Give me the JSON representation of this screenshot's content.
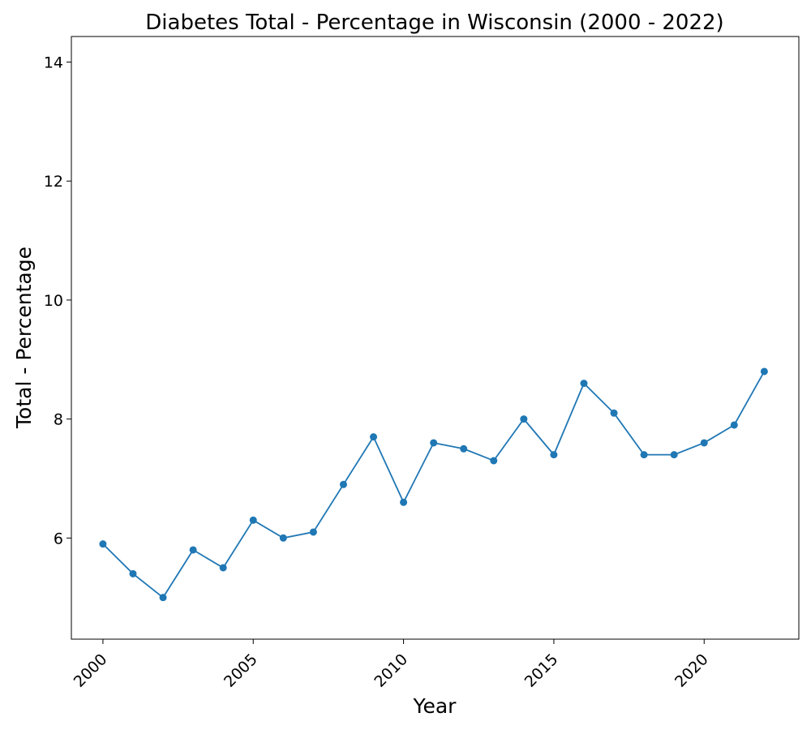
{
  "chart_data": {
    "type": "line",
    "title": "Diabetes Total - Percentage in Wisconsin (2000 - 2022)",
    "xlabel": "Year",
    "ylabel": "Total - Percentage",
    "xlim": [
      1998.95,
      2023.15
    ],
    "ylim": [
      4.3,
      14.43
    ],
    "x_ticks": [
      2000,
      2005,
      2010,
      2015,
      2020
    ],
    "x_tick_labels": [
      "2000",
      "2005",
      "2010",
      "2015",
      "2020"
    ],
    "y_ticks": [
      6,
      8,
      10,
      12,
      14
    ],
    "y_tick_labels": [
      "6",
      "8",
      "10",
      "12",
      "14"
    ],
    "grid": false,
    "line_color": "#1f77b4",
    "series": [
      {
        "x": [
          2000,
          2001,
          2002,
          2003,
          2004,
          2005,
          2006,
          2007,
          2008,
          2009,
          2010,
          2011,
          2012,
          2013,
          2014,
          2015,
          2016,
          2017,
          2018,
          2019,
          2020,
          2021,
          2022
        ],
        "values": [
          5.9,
          5.4,
          5.0,
          5.8,
          5.5,
          6.3,
          6.0,
          6.1,
          6.9,
          7.7,
          6.6,
          7.6,
          7.5,
          7.3,
          8.0,
          7.4,
          8.6,
          8.1,
          7.4,
          7.4,
          7.6,
          7.9,
          8.8
        ]
      }
    ]
  }
}
